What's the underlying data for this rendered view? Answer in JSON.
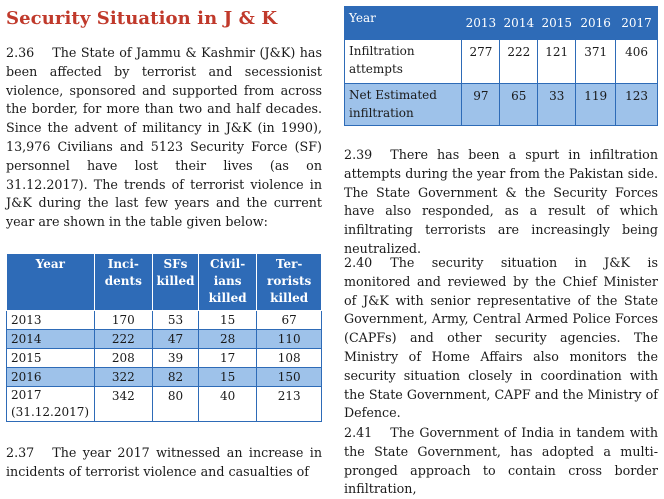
{
  "heading": "Security Situation in J & K",
  "p236": {
    "num": "2.36",
    "text": "The State of Jammu & Kashmir (J&K) has been affected by terrorist and secessionist violence, sponsored and supported from across the border, for more than two and half decades. Since the advent of militancy in J&K (in 1990), 13,976 Civilians and 5123 Security Force (SF) personnel have lost their lives (as on 31.12.2017). The trends of terrorist violence in J&K during the last few years and the current year are shown in the table given below:"
  },
  "stats_table": {
    "headers": {
      "year": "Year",
      "incidents_1": "Inci-",
      "incidents_2": "dents",
      "sfs_1": "SFs",
      "sfs_2": "killed",
      "civ_1": "Civil-",
      "civ_2": "ians",
      "civ_3": "killed",
      "ter_1": "Ter-",
      "ter_2": "rorists",
      "ter_3": "killed"
    },
    "rows": [
      {
        "year": "2013",
        "incidents": "170",
        "sfs": "53",
        "civilians": "15",
        "terrorists": "67"
      },
      {
        "year": "2014",
        "incidents": "222",
        "sfs": "47",
        "civilians": "28",
        "terrorists": "110"
      },
      {
        "year": "2015",
        "incidents": "208",
        "sfs": "39",
        "civilians": "17",
        "terrorists": "108"
      },
      {
        "year": "2016",
        "incidents": "322",
        "sfs": "82",
        "civilians": "15",
        "terrorists": "150"
      },
      {
        "year": "2017",
        "year_note": "(31.12.2017)",
        "incidents": "342",
        "sfs": "80",
        "civilians": "40",
        "terrorists": "213"
      }
    ]
  },
  "p237": {
    "num": "2.37",
    "text": "The year 2017 witnessed an increase in incidents of terrorist violence and casualties of"
  },
  "infil_table": {
    "header_label": "Year",
    "years": [
      "2013",
      "2014",
      "2015",
      "2016",
      "2017"
    ],
    "row1": {
      "label_1": "Infiltration",
      "label_2": "attempts",
      "values": [
        "277",
        "222",
        "121",
        "371",
        "406"
      ]
    },
    "row2": {
      "label_1": "Net Estimated",
      "label_2": "infiltration",
      "values": [
        "97",
        "65",
        "33",
        "119",
        "123"
      ]
    }
  },
  "p239": {
    "num": "2.39",
    "text": "There has been a spurt in infiltration attempts during the year from the Pakistan side. The State Government & the Security Forces have also responded, as a result of which infiltrating terrorists are increasingly being neutralized."
  },
  "p240": {
    "num": "2.40",
    "text": "The security situation in J&K is monitored and reviewed by the Chief Minister of J&K with senior representative of the State Government, Army, Central Armed Police Forces (CAPFs) and other security agencies. The Ministry of Home Affairs also monitors the security situation closely in coordination with the State Government, CAPF and the Ministry of Defence."
  },
  "p241": {
    "num": "2.41",
    "text": "The Government of India in tandem with the State Government, has adopted a multi-pronged approach to contain cross border infiltration,"
  }
}
